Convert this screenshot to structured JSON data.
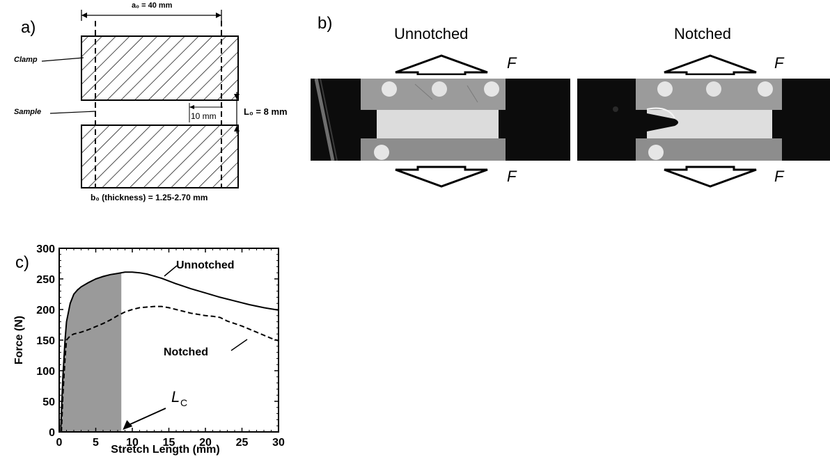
{
  "figure": {
    "panel_a": {
      "label": "a)",
      "clamp_label": "Clamp",
      "sample_label": "Sample",
      "width_annotation": "a₀ = 40 mm",
      "notch_annotation": "10 mm",
      "length_annotation": "L₀ = 8 mm",
      "thickness_annotation": "b₀ (thickness) = 1.25-2.70 mm"
    },
    "panel_b": {
      "label": "b)",
      "conditions": [
        "Unnotched",
        "Notched"
      ],
      "force_symbol": "F"
    },
    "panel_c": {
      "label": "c)",
      "lc_symbol": "L",
      "lc_subscript": "C"
    }
  },
  "chart_data": {
    "type": "line",
    "xlabel": "Stretch Length (mm)",
    "ylabel": "Force (N)",
    "xlim": [
      0,
      30
    ],
    "ylim": [
      0,
      300
    ],
    "xticks": [
      0,
      5,
      10,
      15,
      20,
      25,
      30
    ],
    "yticks": [
      0,
      50,
      100,
      150,
      200,
      250,
      300
    ],
    "shaded_region_x": [
      0,
      8.5
    ],
    "series": [
      {
        "name": "Unnotched",
        "style": "solid",
        "x": [
          0.2,
          0.5,
          0.8,
          1.0,
          1.5,
          2.0,
          2.5,
          3,
          4,
          5,
          6,
          7,
          8,
          9,
          10,
          11,
          12,
          14,
          16,
          18,
          20,
          22,
          24,
          26,
          28,
          30
        ],
        "y": [
          0,
          90,
          150,
          180,
          210,
          225,
          232,
          237,
          244,
          250,
          254,
          257,
          259,
          261,
          261,
          260,
          258,
          251,
          242,
          234,
          227,
          220,
          214,
          208,
          203,
          199
        ]
      },
      {
        "name": "Notched",
        "style": "dashed",
        "x": [
          0.3,
          0.5,
          0.8,
          1.0,
          1.5,
          2,
          3,
          4,
          5,
          6,
          7,
          8,
          9,
          10,
          11,
          12,
          13,
          14,
          15,
          16,
          17,
          18,
          19,
          20,
          21,
          22,
          23,
          24,
          25,
          26,
          27,
          28,
          29,
          30
        ],
        "y": [
          0,
          60,
          120,
          150,
          157,
          160,
          163,
          167,
          172,
          177,
          183,
          190,
          196,
          200,
          203,
          204,
          205,
          205,
          203,
          200,
          197,
          194,
          192,
          190,
          189,
          187,
          181,
          177,
          173,
          168,
          163,
          158,
          153,
          149
        ]
      }
    ],
    "annotations": [
      "Unnotched",
      "Notched",
      "L_C"
    ]
  }
}
